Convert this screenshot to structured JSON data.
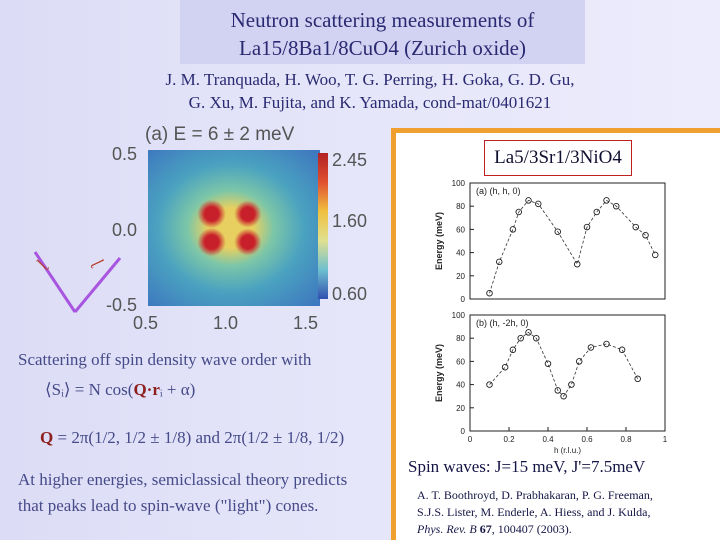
{
  "header": {
    "title_line1": "Neutron scattering measurements of",
    "title_line2": "La15/8Ba1/8CuO4 (Zurich oxide)",
    "authors_line1": "J. M. Tranquada, H. Woo, T. G. Perring, H. Goka, G. D. Gu,",
    "authors_line2": "G. Xu, M. Fujita, and K. Yamada, cond-mat/0401621"
  },
  "left_panel": {
    "panel_label": "(a) E = 6 ± 2 meV",
    "y_ticks": [
      "0.5",
      "0.0",
      "-0.5"
    ],
    "x_ticks": [
      "0.5",
      "1.0",
      "1.5"
    ],
    "colorbar_ticks": [
      "2.45",
      "1.60",
      "0.60"
    ],
    "direction_labels": [
      "ɭ",
      "ɭ"
    ],
    "colors": {
      "hot": "#c8202a",
      "warm": "#e8d060",
      "cool": "#3d74bf"
    }
  },
  "explanation": {
    "sdw_text": "Scattering off spin density wave order with",
    "formula_sdw_lhs": "⟨Sᵢ⟩ = N cos(",
    "formula_sdw_q": "Q·r",
    "formula_sdw_rhs": "ᵢ + α)",
    "formula_q_lhs": "Q",
    "formula_q": " = 2π(1/2, 1/2 ± 1/8) and 2π(1/2 ± 1/8, 1/2)",
    "high_energy_text_1": "At higher energies, semiclassical theory predicts",
    "high_energy_text_2": "that peaks lead to spin-wave (\"light\") cones."
  },
  "right_panel": {
    "compound": "La5/3Sr1/3NiO4",
    "spin_waves": "Spin waves: J=15 meV, J'=7.5meV",
    "reference_line1": "A. T. Boothroyd, D. Prabhakaran, P. G. Freeman,",
    "reference_line2": "S.J.S. Lister, M. Enderle, A. Hiess, and J. Kulda,",
    "reference_journal": "Phys. Rev. B",
    "reference_volume": "67",
    "reference_rest": ", 100407 (2003).",
    "ylabel": "Energy (meV)",
    "xlabel": "h (r.l.u.)"
  },
  "chart_data": [
    {
      "type": "scatter",
      "title": "(a) (h, h, 0)",
      "xlabel": "",
      "ylabel": "Energy (meV)",
      "ylim": [
        0,
        100
      ],
      "y_ticks": [
        "0",
        "20",
        "40",
        "60",
        "80",
        "100"
      ],
      "x": [
        0.1,
        0.15,
        0.22,
        0.25,
        0.3,
        0.35,
        0.45,
        0.55,
        0.6,
        0.65,
        0.7,
        0.75,
        0.85,
        0.9,
        0.95
      ],
      "values": [
        5,
        32,
        60,
        75,
        85,
        82,
        58,
        30,
        62,
        75,
        85,
        80,
        62,
        55,
        38
      ]
    },
    {
      "type": "scatter",
      "title": "(b) (h, -2h, 0)",
      "xlabel": "h (r.l.u.)",
      "ylabel": "Energy (meV)",
      "ylim": [
        0,
        100
      ],
      "y_ticks": [
        "0",
        "20",
        "40",
        "60",
        "80",
        "100"
      ],
      "x_ticks": [
        "0",
        "0.2",
        "0.4",
        "0.6",
        "0.8",
        "1"
      ],
      "x": [
        0.1,
        0.18,
        0.22,
        0.26,
        0.3,
        0.34,
        0.4,
        0.45,
        0.48,
        0.52,
        0.56,
        0.62,
        0.7,
        0.78,
        0.86
      ],
      "values": [
        40,
        55,
        70,
        80,
        85,
        80,
        58,
        35,
        30,
        40,
        60,
        72,
        75,
        70,
        45
      ]
    }
  ]
}
